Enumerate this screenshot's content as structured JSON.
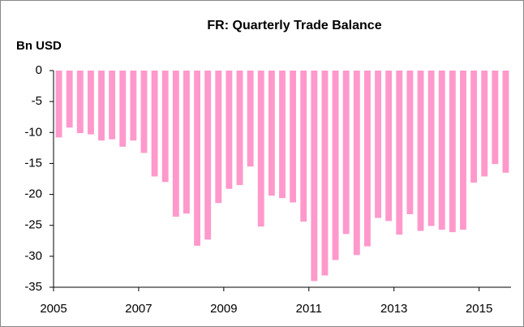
{
  "chart_data": {
    "type": "bar",
    "title": "FR: Quarterly Trade Balance",
    "y_label": "Bn USD",
    "categories": [
      "2005",
      null,
      null,
      null,
      null,
      null,
      null,
      null,
      "2007",
      null,
      null,
      null,
      null,
      null,
      null,
      null,
      "2009",
      null,
      null,
      null,
      null,
      null,
      null,
      null,
      "2011",
      null,
      null,
      null,
      null,
      null,
      null,
      null,
      "2013",
      null,
      null,
      null,
      null,
      null,
      null,
      null,
      "2015",
      null,
      null
    ],
    "values": [
      -10.8,
      -9.2,
      -10.1,
      -10.3,
      -11.3,
      -11.1,
      -12.3,
      -11.3,
      -13.3,
      -17.1,
      -18.0,
      -23.6,
      -23.1,
      -28.3,
      -27.3,
      -21.4,
      -19.1,
      -18.5,
      -15.5,
      -25.2,
      -20.2,
      -20.6,
      -21.3,
      -24.4,
      -34.0,
      -33.1,
      -30.6,
      -26.4,
      -29.8,
      -28.4,
      -23.8,
      -24.3,
      -26.5,
      -23.2,
      -25.9,
      -25.1,
      -25.7,
      -26.1,
      -25.7,
      -18.1,
      -17.1,
      -15.1,
      -16.5
    ],
    "color": "#ff99cc",
    "ylim": [
      -35,
      0
    ],
    "yticks": [
      -35,
      -30,
      -25,
      -20,
      -15,
      -10,
      -5,
      0
    ],
    "grid": false
  }
}
